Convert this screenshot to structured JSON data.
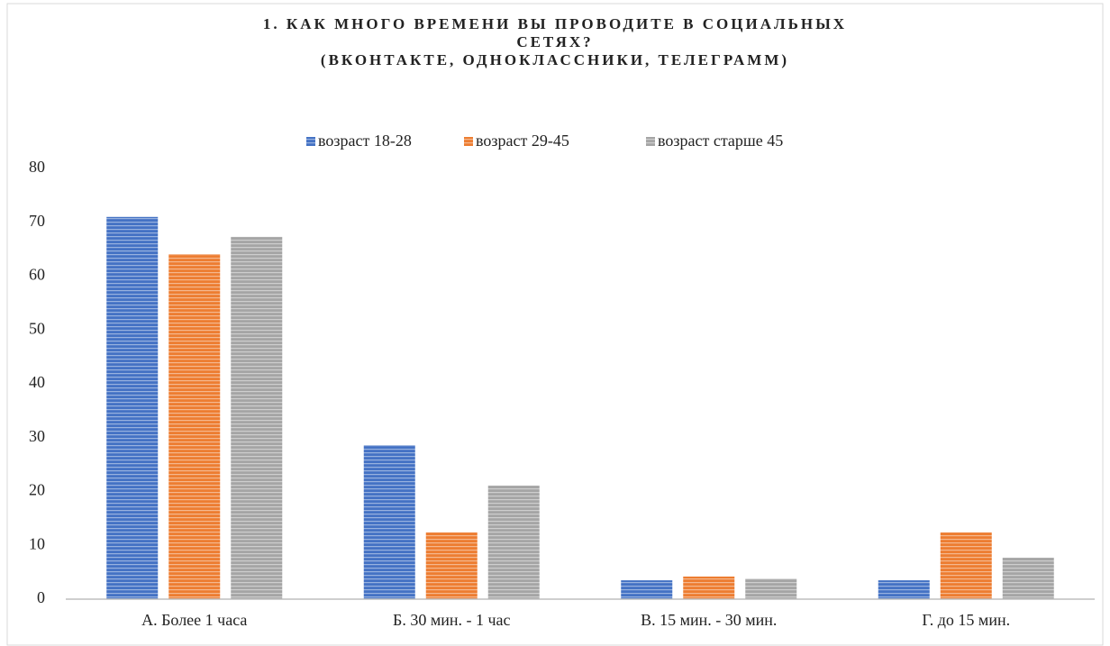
{
  "chart_data": {
    "type": "bar",
    "title": [
      "1. КАК МНОГО ВРЕМЕНИ ВЫ ПРОВОДИТЕ В СОЦИАЛЬНЫХ",
      "СЕТЯХ?",
      "(ВКОНТАКТЕ, ОДНОКЛАССНИКИ, ТЕЛЕГРАММ)"
    ],
    "categories": [
      "А. Более 1 часа",
      "Б. 30 мин. - 1 час",
      "В. 15 мин. - 30 мин.",
      "Г. до 15 мин."
    ],
    "series": [
      {
        "name": "возраст 18-28",
        "color": "#4472c4",
        "values": [
          71,
          28.6,
          3.5,
          3.5
        ]
      },
      {
        "name": "возраст 29-45",
        "color": "#ed7d31",
        "values": [
          64.1,
          12.4,
          4.2,
          12.4
        ]
      },
      {
        "name": "возраст старше 45",
        "color": "#a5a5a5",
        "values": [
          67.3,
          21.1,
          3.8,
          7.7
        ]
      }
    ],
    "ylim": [
      0,
      80
    ],
    "yticks": [
      0,
      10,
      20,
      30,
      40,
      50,
      60,
      70,
      80
    ],
    "grid": false,
    "legend": "top"
  }
}
